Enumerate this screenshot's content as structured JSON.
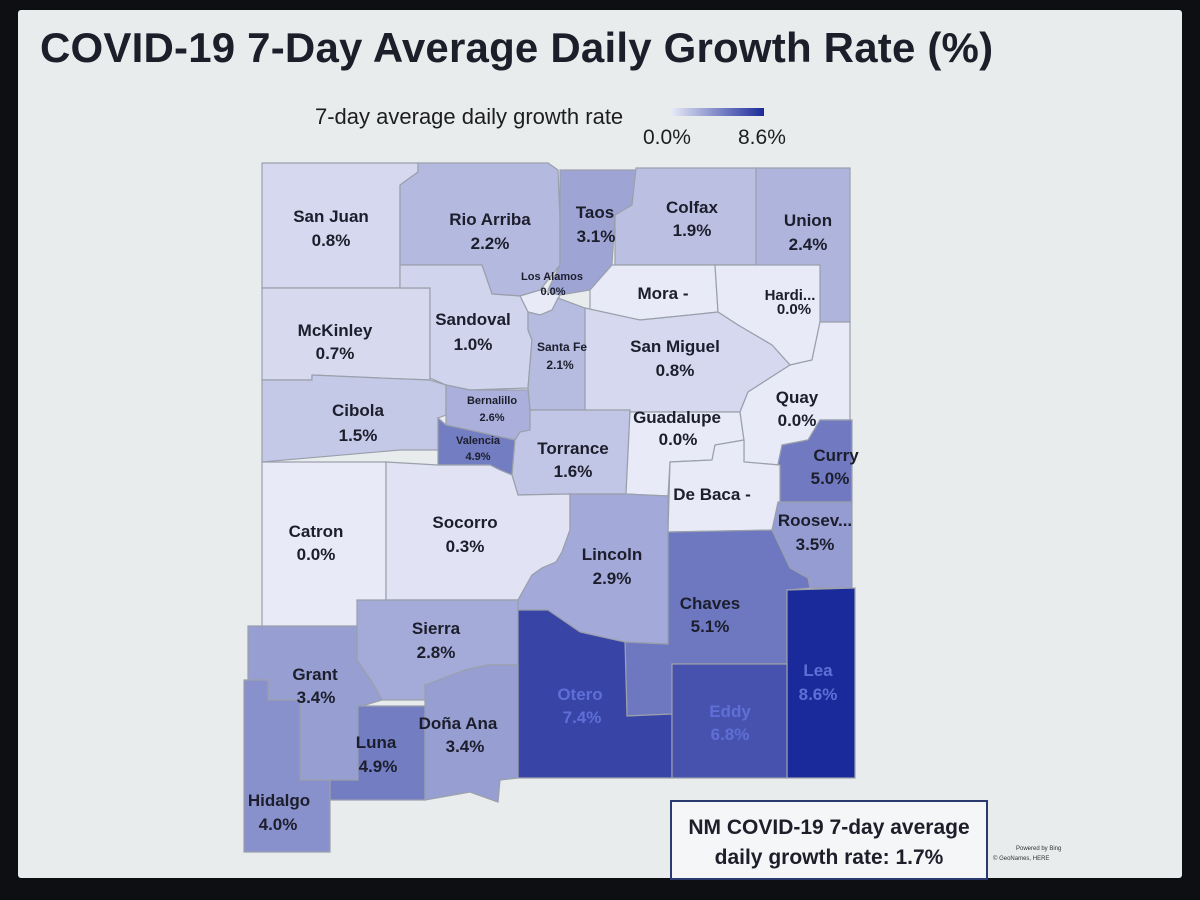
{
  "title": "COVID-19 7-Day Average Daily Growth Rate (%)",
  "legend": {
    "label": "7-day average daily growth rate",
    "min_label": "0.0%",
    "max_label": "8.6%",
    "min_value": 0.0,
    "max_value": 8.6,
    "color_low": "#e8eaf7",
    "color_high": "#1b2a9a"
  },
  "summary": {
    "line1": "NM COVID-19 7-day average",
    "line2": "daily growth rate: 1.7%"
  },
  "attribution": {
    "line1": "Powered by Bing",
    "line2": "© GeoNames, HERE"
  },
  "counties": [
    {
      "id": "san-juan",
      "name": "San Juan",
      "label": "0.8%",
      "value": 0.8
    },
    {
      "id": "rio-arriba",
      "name": "Rio Arriba",
      "label": "2.2%",
      "value": 2.2
    },
    {
      "id": "taos",
      "name": "Taos",
      "label": "3.1%",
      "value": 3.1
    },
    {
      "id": "colfax",
      "name": "Colfax",
      "label": "1.9%",
      "value": 1.9
    },
    {
      "id": "union",
      "name": "Union",
      "label": "2.4%",
      "value": 2.4
    },
    {
      "id": "los-alamos",
      "name": "Los Alamos",
      "label": "0.0%",
      "value": 0.0
    },
    {
      "id": "mora",
      "name": "Mora",
      "label": "-",
      "value": null
    },
    {
      "id": "harding",
      "name": "Hardi...",
      "label": "0.0%",
      "value": 0.0
    },
    {
      "id": "mckinley",
      "name": "McKinley",
      "label": "0.7%",
      "value": 0.7
    },
    {
      "id": "sandoval",
      "name": "Sandoval",
      "label": "1.0%",
      "value": 1.0
    },
    {
      "id": "santa-fe",
      "name": "Santa Fe",
      "label": "2.1%",
      "value": 2.1
    },
    {
      "id": "san-miguel",
      "name": "San Miguel",
      "label": "0.8%",
      "value": 0.8
    },
    {
      "id": "cibola",
      "name": "Cibola",
      "label": "1.5%",
      "value": 1.5
    },
    {
      "id": "bernalillo",
      "name": "Bernalillo",
      "label": "2.6%",
      "value": 2.6
    },
    {
      "id": "valencia",
      "name": "Valencia",
      "label": "4.9%",
      "value": 4.9
    },
    {
      "id": "torrance",
      "name": "Torrance",
      "label": "1.6%",
      "value": 1.6
    },
    {
      "id": "guadalupe",
      "name": "Guadalupe",
      "label": "0.0%",
      "value": 0.0
    },
    {
      "id": "quay",
      "name": "Quay",
      "label": "0.0%",
      "value": 0.0
    },
    {
      "id": "curry",
      "name": "Curry",
      "label": "5.0%",
      "value": 5.0
    },
    {
      "id": "de-baca",
      "name": "De Baca",
      "label": "-",
      "value": null
    },
    {
      "id": "catron",
      "name": "Catron",
      "label": "0.0%",
      "value": 0.0
    },
    {
      "id": "socorro",
      "name": "Socorro",
      "label": "0.3%",
      "value": 0.3
    },
    {
      "id": "lincoln",
      "name": "Lincoln",
      "label": "2.9%",
      "value": 2.9
    },
    {
      "id": "roosevelt",
      "name": "Roosev...",
      "label": "3.5%",
      "value": 3.5
    },
    {
      "id": "chaves",
      "name": "Chaves",
      "label": "5.1%",
      "value": 5.1
    },
    {
      "id": "sierra",
      "name": "Sierra",
      "label": "2.8%",
      "value": 2.8
    },
    {
      "id": "grant",
      "name": "Grant",
      "label": "3.4%",
      "value": 3.4
    },
    {
      "id": "otero",
      "name": "Otero",
      "label": "7.4%",
      "value": 7.4
    },
    {
      "id": "lea",
      "name": "Lea",
      "label": "8.6%",
      "value": 8.6
    },
    {
      "id": "eddy",
      "name": "Eddy",
      "label": "6.8%",
      "value": 6.8
    },
    {
      "id": "luna",
      "name": "Luna",
      "label": "4.9%",
      "value": 4.9
    },
    {
      "id": "dona-ana",
      "name": "Doña Ana",
      "label": "3.4%",
      "value": 3.4
    },
    {
      "id": "hidalgo",
      "name": "Hidalgo",
      "label": "4.0%",
      "value": 4.0
    }
  ]
}
